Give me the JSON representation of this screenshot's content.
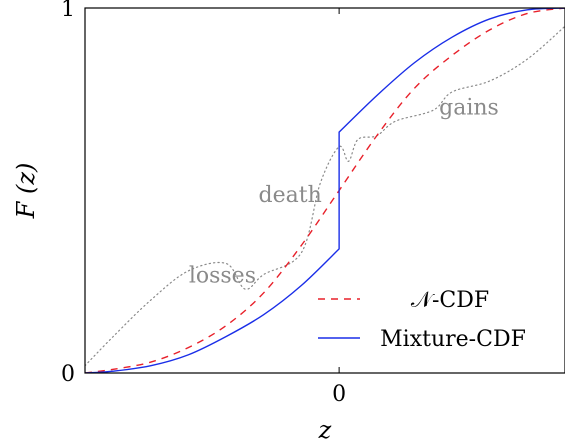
{
  "chart_data": {
    "type": "line",
    "xlabel": "z",
    "ylabel": "F (z)",
    "xlim": [
      -1.35,
      1.2
    ],
    "ylim": [
      0,
      1
    ],
    "x_ticks": [
      {
        "value": 0,
        "label": "0"
      }
    ],
    "y_ticks": [
      {
        "value": 0,
        "label": "0"
      },
      {
        "value": 1,
        "label": "1"
      }
    ],
    "grid": false,
    "legend_position": "bottom-right",
    "colors": {
      "normal": "#e8202a",
      "mixture": "#1a2ee8",
      "annotation": "#8a8a8a"
    },
    "series": [
      {
        "name": "𝒩-CDF",
        "style": "dashed",
        "x": [
          -1.35,
          -1.2,
          -1.0,
          -0.8,
          -0.6,
          -0.4,
          -0.2,
          0.0,
          0.2,
          0.4,
          0.6,
          0.8,
          1.0,
          1.2
        ],
        "y": [
          0.0,
          0.01,
          0.03,
          0.07,
          0.13,
          0.22,
          0.35,
          0.5,
          0.65,
          0.78,
          0.87,
          0.94,
          0.985,
          1.0
        ]
      },
      {
        "name": "Mixture-CDF",
        "style": "solid",
        "x": [
          -1.35,
          -1.2,
          -1.0,
          -0.8,
          -0.6,
          -0.4,
          -0.2,
          0.0,
          0.0,
          0.2,
          0.4,
          0.6,
          0.8,
          1.0,
          1.2
        ],
        "y": [
          0.0,
          0.005,
          0.02,
          0.05,
          0.1,
          0.16,
          0.24,
          0.34,
          0.66,
          0.76,
          0.85,
          0.92,
          0.97,
          0.995,
          1.0
        ]
      }
    ],
    "annotation_curve": {
      "style": "dotted",
      "x": [
        -1.35,
        -1.2,
        -1.0,
        -0.8,
        -0.6,
        -0.5,
        -0.4,
        -0.2,
        -0.1,
        0.0,
        0.05,
        0.1,
        0.2,
        0.3,
        0.5,
        0.6,
        0.8,
        1.0,
        1.2
      ],
      "y": [
        0.02,
        0.1,
        0.2,
        0.28,
        0.3,
        0.23,
        0.27,
        0.33,
        0.52,
        0.62,
        0.58,
        0.64,
        0.65,
        0.69,
        0.72,
        0.77,
        0.8,
        0.86,
        0.95
      ]
    },
    "annotations": [
      {
        "text": "losses",
        "x": -0.62,
        "y": 0.27
      },
      {
        "text": "death",
        "x": -0.26,
        "y": 0.49
      },
      {
        "text": "gains",
        "x": 0.69,
        "y": 0.73
      }
    ]
  }
}
